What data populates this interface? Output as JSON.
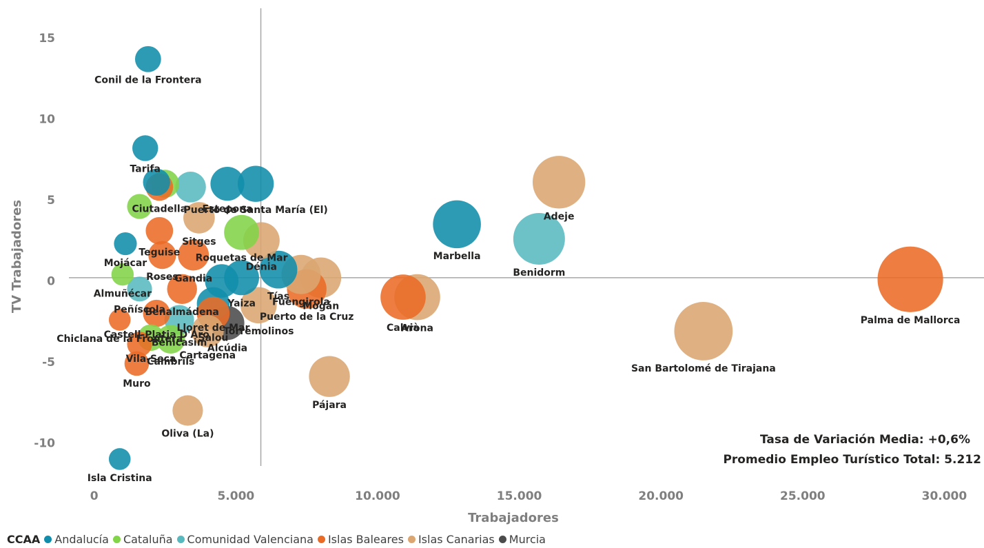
{
  "chart_data": {
    "type": "scatter",
    "subtype": "bubble",
    "xlabel": "Trabajadores",
    "ylabel": "TV Trabajadores",
    "xlim": [
      -650,
      31400
    ],
    "ylim": [
      -13.3,
      16.5
    ],
    "x_ticks": [
      {
        "value": 0,
        "label": "0"
      },
      {
        "value": 5000,
        "label": "5.000"
      },
      {
        "value": 10000,
        "label": "10.000"
      },
      {
        "value": 15000,
        "label": "15.000"
      },
      {
        "value": 20000,
        "label": "20.000"
      },
      {
        "value": 25000,
        "label": "25.000"
      },
      {
        "value": 30000,
        "label": "30.000"
      }
    ],
    "y_ticks": [
      {
        "value": 15,
        "label": "15"
      },
      {
        "value": 10,
        "label": "10"
      },
      {
        "value": 5,
        "label": "5"
      },
      {
        "value": 0,
        "label": "0"
      },
      {
        "value": -5,
        "label": "-5"
      },
      {
        "value": -10,
        "label": "-10"
      }
    ],
    "reference_lines": {
      "x": 5880,
      "y": 0.2
    },
    "grid": false,
    "legend": {
      "title": "CCAA",
      "position": "bottom-left",
      "entries": [
        {
          "name": "Andalucía",
          "color": "#118dab"
        },
        {
          "name": "Cataluña",
          "color": "#82d448"
        },
        {
          "name": "Comunidad Valenciana",
          "color": "#58b9bf"
        },
        {
          "name": "Islas Baleares",
          "color": "#ea6b26"
        },
        {
          "name": "Islas Canarias",
          "color": "#dba671"
        },
        {
          "name": "Murcia",
          "color": "#4b4b4b"
        }
      ]
    },
    "annotations": [
      "Tasa de Variación Media: +0,6%",
      "Promedio Empleo Turístico Total: 5.212"
    ],
    "points": [
      {
        "x": 4700,
        "y": 6.0,
        "label": "Estepona",
        "ccaa": "Andalucía"
      },
      {
        "x": 3400,
        "y": 5.8,
        "label": "",
        "ccaa": "Comunidad Valenciana"
      },
      {
        "x": 2200,
        "y": 6.1,
        "label": "",
        "ccaa": "Andalucía"
      },
      {
        "x": 2300,
        "y": 5.8,
        "label": "Ciutadella",
        "ccaa": "Islas Baleares"
      },
      {
        "x": 2500,
        "y": 6.0,
        "label": "",
        "ccaa": "Cataluña"
      },
      {
        "x": 1600,
        "y": 4.6,
        "label": "",
        "ccaa": "Cataluña"
      },
      {
        "x": 12800,
        "y": 3.5,
        "label": "Marbella",
        "ccaa": "Andalucía"
      },
      {
        "x": 15700,
        "y": 2.6,
        "label": "Benidorm",
        "ccaa": "Comunidad Valenciana"
      },
      {
        "x": 16400,
        "y": 6.1,
        "label": "Adeje",
        "ccaa": "Islas Canarias"
      },
      {
        "x": 28800,
        "y": 0.1,
        "label": "Palma de Mallorca",
        "ccaa": "Islas Baleares"
      },
      {
        "x": 21500,
        "y": -3.1,
        "label": "San Bartolomé de Tirajana",
        "ccaa": "Islas Canarias"
      },
      {
        "x": 10900,
        "y": -1.0,
        "label": "Calvià",
        "ccaa": "Islas Baleares"
      },
      {
        "x": 11400,
        "y": -1.0,
        "label": "Arona",
        "ccaa": "Islas Canarias"
      },
      {
        "x": 1900,
        "y": 13.7,
        "label": "Conil de la Frontera",
        "ccaa": "Andalucía"
      },
      {
        "x": 1800,
        "y": 8.2,
        "label": "Tarifa",
        "ccaa": "Andalucía"
      },
      {
        "x": 1100,
        "y": 2.3,
        "label": "Mojácar",
        "ccaa": "Andalucía"
      },
      {
        "x": 900,
        "y": -11.0,
        "label": "Isla Cristina",
        "ccaa": "Andalucía"
      },
      {
        "x": 3300,
        "y": -8.0,
        "label": "Oliva (La)",
        "ccaa": "Islas Canarias"
      },
      {
        "x": 8300,
        "y": -5.9,
        "label": "Pájara",
        "ccaa": "Islas Canarias"
      },
      {
        "x": 1500,
        "y": -5.1,
        "label": "Muro",
        "ccaa": "Islas Baleares"
      },
      {
        "x": 2700,
        "y": -3.6,
        "label": "Cambrils",
        "ccaa": "Cataluña"
      },
      {
        "x": 3000,
        "y": -2.4,
        "label": "Benicasim",
        "ccaa": "Comunidad Valenciana"
      },
      {
        "x": 2000,
        "y": -3.5,
        "label": "Vila-Seca",
        "ccaa": "Cataluña"
      },
      {
        "x": 1000,
        "y": 0.4,
        "label": "Almuñécar",
        "ccaa": "Cataluña"
      },
      {
        "x": 1600,
        "y": -0.5,
        "label": "Peñíscola",
        "ccaa": "Comunidad Valenciana"
      },
      {
        "x": 900,
        "y": -2.4,
        "label": "Chiclana de la Frontera",
        "ccaa": "Islas Baleares"
      },
      {
        "x": 2200,
        "y": -2.0,
        "label": "Castell-Platja D'Aro",
        "ccaa": "Islas Baleares"
      },
      {
        "x": 1600,
        "y": -3.9,
        "label": "",
        "ccaa": "Islas Baleares"
      },
      {
        "x": 2300,
        "y": 3.1,
        "label": "Teguise",
        "ccaa": "Islas Baleares"
      },
      {
        "x": 2400,
        "y": 1.6,
        "label": "Roses",
        "ccaa": "Islas Baleares"
      },
      {
        "x": 3500,
        "y": 1.6,
        "label": "Gandia",
        "ccaa": "Islas Baleares"
      },
      {
        "x": 3100,
        "y": -0.5,
        "label": "Benalmádena",
        "ccaa": "Islas Baleares"
      },
      {
        "x": 3700,
        "y": 3.9,
        "label": "Sitges",
        "ccaa": "Islas Canarias"
      },
      {
        "x": 5200,
        "y": 3.0,
        "label": "Roquetas de Mar",
        "ccaa": "Cataluña"
      },
      {
        "x": 5900,
        "y": 2.5,
        "label": "Dénia",
        "ccaa": "Islas Canarias"
      },
      {
        "x": 6500,
        "y": 0.7,
        "label": "Tías",
        "ccaa": "Andalucía"
      },
      {
        "x": 7300,
        "y": 0.4,
        "label": "Fuengirola",
        "ccaa": "Islas Canarias"
      },
      {
        "x": 5200,
        "y": 0.2,
        "label": "Yaiza",
        "ccaa": "Andalucía"
      },
      {
        "x": 4200,
        "y": -1.4,
        "label": "Lloret de Mar",
        "ccaa": "Andalucía"
      },
      {
        "x": 4200,
        "y": -2.0,
        "label": "Salou",
        "ccaa": "Islas Baleares"
      },
      {
        "x": 5800,
        "y": -1.5,
        "label": "Torremolinos",
        "ccaa": "Islas Canarias"
      },
      {
        "x": 4700,
        "y": -2.6,
        "label": "Alcúdia",
        "ccaa": "Murcia"
      },
      {
        "x": 7500,
        "y": -0.5,
        "label": "Puerto de la Cruz",
        "ccaa": "Islas Baleares"
      },
      {
        "x": 4000,
        "y": -3.1,
        "label": "Cartagena",
        "ccaa": "Islas Canarias"
      },
      {
        "x": 4500,
        "y": 0.0,
        "label": "",
        "ccaa": "Andalucía"
      },
      {
        "x": 8000,
        "y": 0.2,
        "label": "Mogán",
        "ccaa": "Islas Canarias"
      },
      {
        "x": 5700,
        "y": 6.0,
        "label": "Puerto de Santa María (El)",
        "ccaa": "Andalucía"
      }
    ]
  }
}
